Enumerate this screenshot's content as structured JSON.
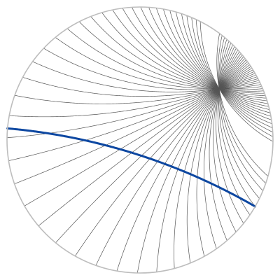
{
  "diagram": {
    "description_visible_text": "",
    "style": {
      "background": "#ffffff",
      "boundary_color": "#bdbdbd",
      "geodesic_color": "#555555",
      "highlight_color": "#0d47a1"
    },
    "model": "poincare-disk",
    "pencil": {
      "count": 48,
      "point": [
        0.5953,
        0.3861
      ],
      "angle_start_deg": 120,
      "angle_end_deg": 280
    },
    "highlighted_geodesic": {
      "endpoints_deg": [
        175,
        330
      ]
    }
  }
}
